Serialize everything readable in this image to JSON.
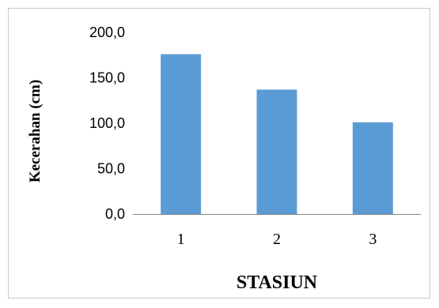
{
  "chart_data": {
    "type": "bar",
    "categories": [
      "1",
      "2",
      "3"
    ],
    "values": [
      176,
      137,
      101
    ],
    "title": "",
    "xlabel": "STASIUN",
    "ylabel": "Kecerahan (cm)",
    "ylim": [
      0,
      200
    ],
    "yticks": [
      "0,0",
      "50,0",
      "100,0",
      "150,0",
      "200,0"
    ],
    "bar_color": "#5b9bd5",
    "grid": false,
    "legend": "none"
  }
}
